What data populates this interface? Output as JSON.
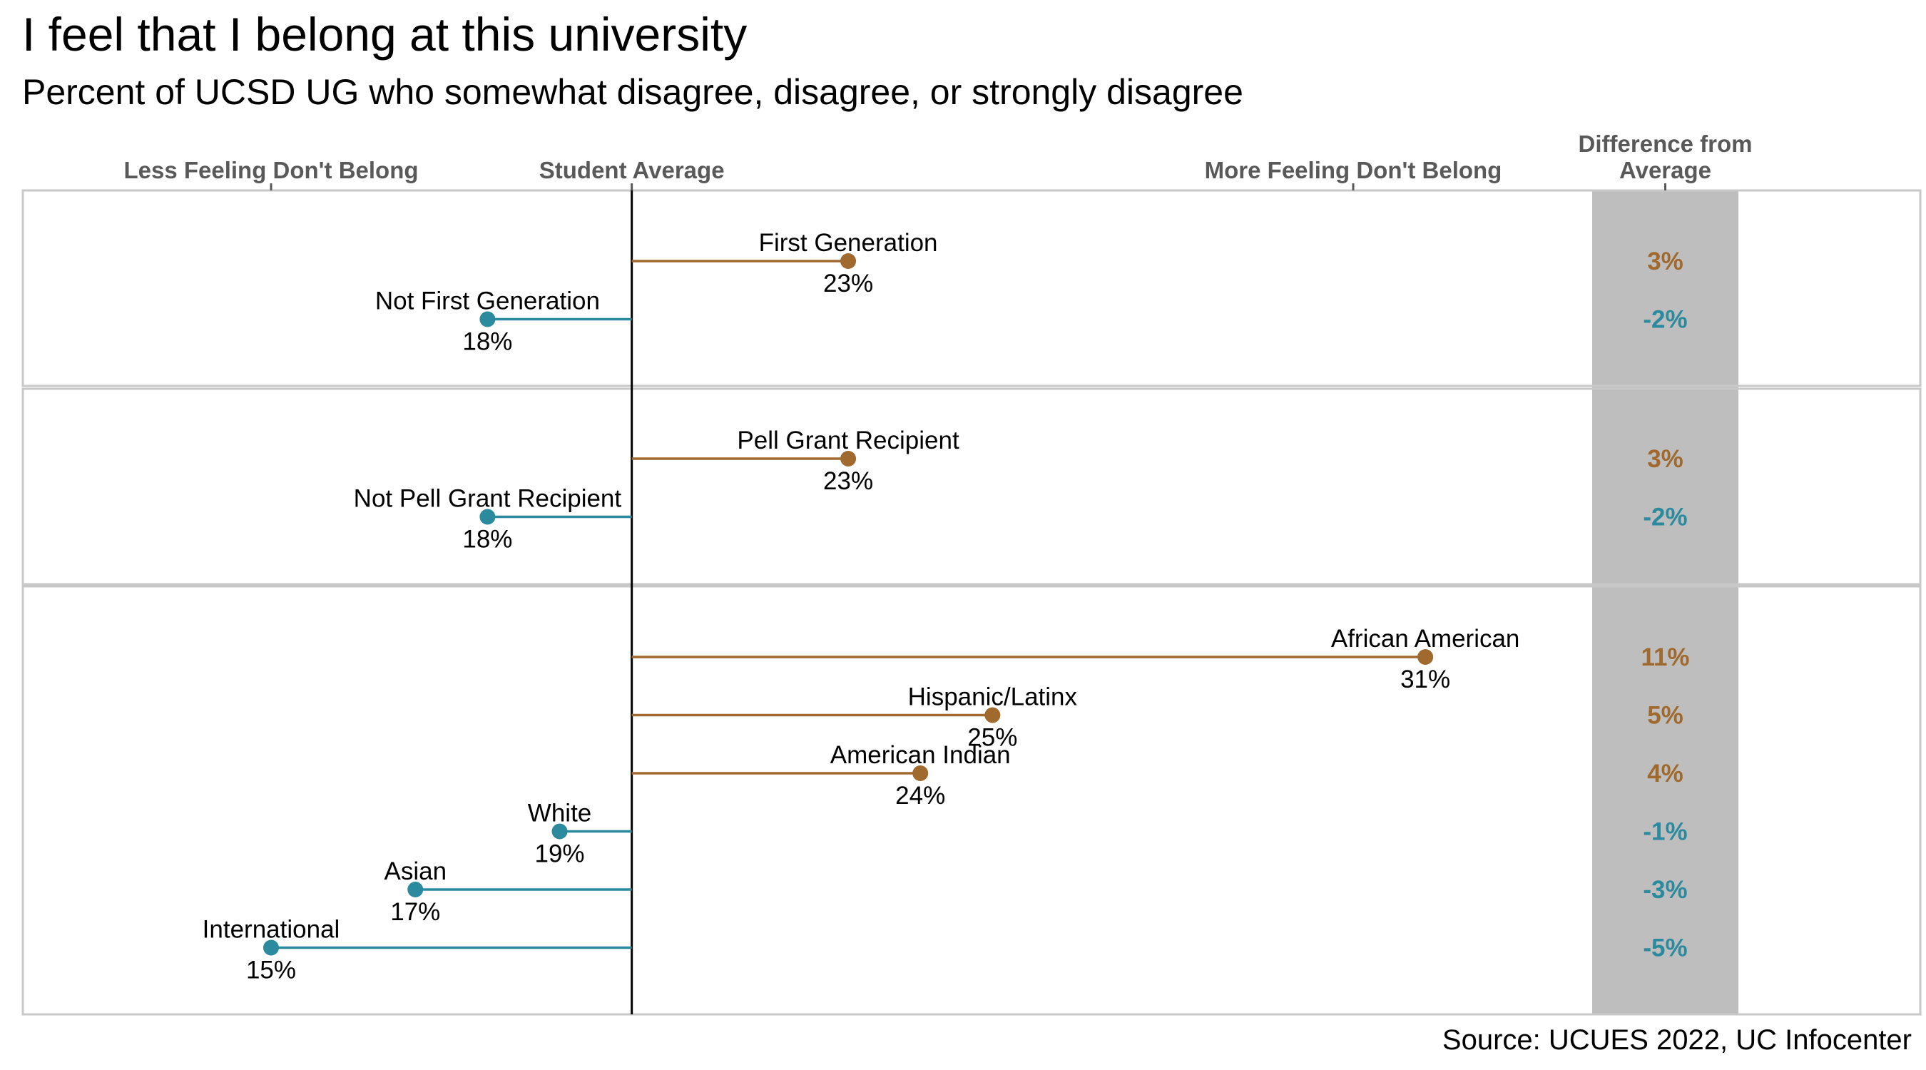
{
  "title": "I feel that I belong at this university",
  "subtitle": "Percent of UCSD UG who somewhat disagree, disagree, or strongly disagree",
  "source": "Source: UCUES 2022, UC Infocenter",
  "colors": {
    "above": "#A0692E",
    "below": "#2B8A9E",
    "diff_band": "#BEBEBE",
    "panel_border": "#C8C8C8",
    "axis_label": "#595959"
  },
  "chart_data": {
    "type": "dot",
    "student_average": 20,
    "xlim": [
      12,
      38
    ],
    "axis_labels": [
      {
        "value": 15,
        "text": "Less Feeling Don't Belong"
      },
      {
        "value": 20,
        "text": "Student Average"
      },
      {
        "value": 30,
        "text": "More Feeling Don't Belong"
      }
    ],
    "difference_header": [
      "Difference from",
      "Average"
    ],
    "panels": [
      {
        "groups": [
          {
            "name": "First Generation",
            "value": 23,
            "label": "23%",
            "diff": "3%"
          },
          {
            "name": "Not First Generation",
            "value": 18,
            "label": "18%",
            "diff": "-2%"
          }
        ]
      },
      {
        "groups": [
          {
            "name": "Pell Grant Recipient",
            "value": 23,
            "label": "23%",
            "diff": "3%"
          },
          {
            "name": "Not Pell Grant Recipient",
            "value": 18,
            "label": "18%",
            "diff": "-2%"
          }
        ]
      },
      {
        "groups": [
          {
            "name": "African American",
            "value": 31,
            "label": "31%",
            "diff": "11%"
          },
          {
            "name": "Hispanic/Latinx",
            "value": 25,
            "label": "25%",
            "diff": "5%"
          },
          {
            "name": "American Indian",
            "value": 24,
            "label": "24%",
            "diff": "4%"
          },
          {
            "name": "White",
            "value": 19,
            "label": "19%",
            "diff": "-1%"
          },
          {
            "name": "Asian",
            "value": 17,
            "label": "17%",
            "diff": "-3%"
          },
          {
            "name": "International",
            "value": 15,
            "label": "15%",
            "diff": "-5%"
          }
        ]
      }
    ]
  }
}
